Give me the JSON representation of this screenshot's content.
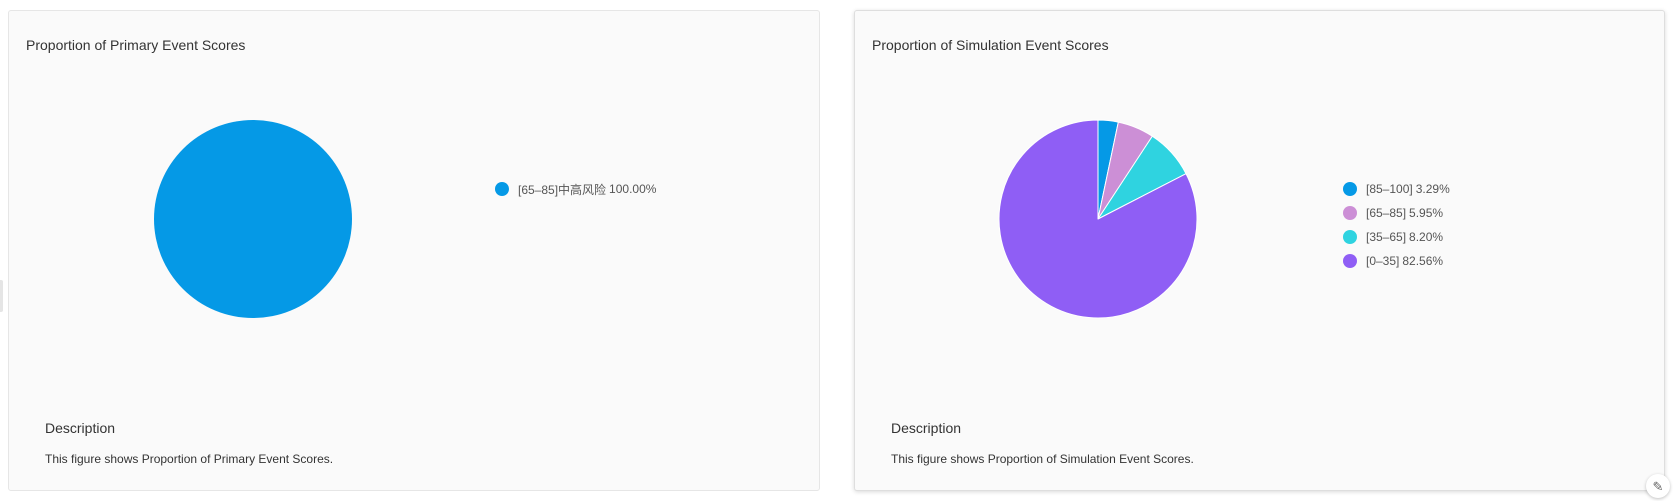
{
  "primary_card": {
    "title": "Proportion of Primary Event Scores",
    "legend": [
      {
        "label": "[65–85]中高风险",
        "percent": "100.00%",
        "color": "#0599e6"
      }
    ],
    "description_heading": "Description",
    "description_text": "This figure shows Proportion of Primary Event Scores."
  },
  "simulation_card": {
    "title": "Proportion of Simulation Event Scores",
    "legend": [
      {
        "label": "[85–100]",
        "percent": "3.29%",
        "color": "#0599e6"
      },
      {
        "label": "[65–85]",
        "percent": "5.95%",
        "color": "#cc8fd6"
      },
      {
        "label": "[35–65]",
        "percent": "8.20%",
        "color": "#2fd3e0"
      },
      {
        "label": "[0–35]",
        "percent": "82.56%",
        "color": "#8f5ef5"
      }
    ],
    "description_heading": "Description",
    "description_text": "This figure shows Proportion of Simulation Event Scores."
  },
  "icons": {
    "edit_corner": "pencil-icon"
  },
  "chart_data": [
    {
      "type": "pie",
      "title": "Proportion of Primary Event Scores",
      "categories": [
        "[65–85]中高风险"
      ],
      "values": [
        100.0
      ],
      "colors": [
        "#0599e6"
      ],
      "legend_position": "right"
    },
    {
      "type": "pie",
      "title": "Proportion of Simulation Event Scores",
      "categories": [
        "[85–100]",
        "[65–85]",
        "[35–65]",
        "[0–35]"
      ],
      "values": [
        3.29,
        5.95,
        8.2,
        82.56
      ],
      "colors": [
        "#0599e6",
        "#cc8fd6",
        "#2fd3e0",
        "#8f5ef5"
      ],
      "legend_position": "right"
    }
  ]
}
